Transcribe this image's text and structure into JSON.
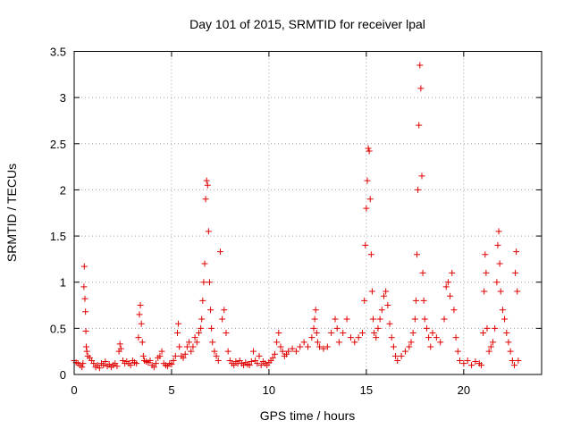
{
  "chart_data": {
    "type": "scatter",
    "title": "Day 101 of 2015, SRMTID for receiver lpal",
    "xlabel": "GPS time / hours",
    "ylabel": "SRMTID / TECUs",
    "xlim": [
      0,
      24
    ],
    "ylim": [
      0,
      3.5
    ],
    "xticks": [
      0,
      5,
      10,
      15,
      20
    ],
    "xtick_labels": [
      "0",
      "5",
      "10",
      "15",
      "20"
    ],
    "yticks": [
      0,
      0.5,
      1,
      1.5,
      2,
      2.5,
      3,
      3.5
    ],
    "ytick_labels": [
      "0",
      "0.5",
      "1",
      "1.5",
      "2",
      "2.5",
      "3",
      "3.5"
    ],
    "grid": true,
    "marker": "+",
    "color": "#e00000",
    "series": [
      {
        "name": "SRMTID",
        "points": [
          [
            0.0,
            0.15
          ],
          [
            0.1,
            0.13
          ],
          [
            0.2,
            0.12
          ],
          [
            0.3,
            0.1
          ],
          [
            0.4,
            0.08
          ],
          [
            0.45,
            0.12
          ],
          [
            0.5,
            0.95
          ],
          [
            0.52,
            1.17
          ],
          [
            0.55,
            0.82
          ],
          [
            0.58,
            0.68
          ],
          [
            0.6,
            0.47
          ],
          [
            0.62,
            0.3
          ],
          [
            0.65,
            0.25
          ],
          [
            0.7,
            0.2
          ],
          [
            0.8,
            0.18
          ],
          [
            0.9,
            0.15
          ],
          [
            1.0,
            0.12
          ],
          [
            1.1,
            0.08
          ],
          [
            1.2,
            0.1
          ],
          [
            1.3,
            0.07
          ],
          [
            1.4,
            0.12
          ],
          [
            1.5,
            0.1
          ],
          [
            1.6,
            0.14
          ],
          [
            1.7,
            0.09
          ],
          [
            1.8,
            0.11
          ],
          [
            1.9,
            0.08
          ],
          [
            2.0,
            0.1
          ],
          [
            2.1,
            0.12
          ],
          [
            2.2,
            0.09
          ],
          [
            2.3,
            0.25
          ],
          [
            2.35,
            0.33
          ],
          [
            2.4,
            0.28
          ],
          [
            2.5,
            0.15
          ],
          [
            2.6,
            0.12
          ],
          [
            2.7,
            0.14
          ],
          [
            2.8,
            0.12
          ],
          [
            2.9,
            0.1
          ],
          [
            3.0,
            0.15
          ],
          [
            3.1,
            0.13
          ],
          [
            3.2,
            0.12
          ],
          [
            3.3,
            0.4
          ],
          [
            3.35,
            0.65
          ],
          [
            3.4,
            0.75
          ],
          [
            3.45,
            0.55
          ],
          [
            3.5,
            0.35
          ],
          [
            3.55,
            0.2
          ],
          [
            3.6,
            0.15
          ],
          [
            3.7,
            0.14
          ],
          [
            3.8,
            0.13
          ],
          [
            3.9,
            0.15
          ],
          [
            4.0,
            0.1
          ],
          [
            4.1,
            0.08
          ],
          [
            4.2,
            0.12
          ],
          [
            4.3,
            0.18
          ],
          [
            4.4,
            0.2
          ],
          [
            4.5,
            0.25
          ],
          [
            4.6,
            0.12
          ],
          [
            4.7,
            0.1
          ],
          [
            4.8,
            0.09
          ],
          [
            4.9,
            0.12
          ],
          [
            5.0,
            0.11
          ],
          [
            5.1,
            0.15
          ],
          [
            5.2,
            0.2
          ],
          [
            5.3,
            0.45
          ],
          [
            5.35,
            0.55
          ],
          [
            5.4,
            0.3
          ],
          [
            5.5,
            0.2
          ],
          [
            5.6,
            0.18
          ],
          [
            5.7,
            0.22
          ],
          [
            5.8,
            0.3
          ],
          [
            5.9,
            0.35
          ],
          [
            6.0,
            0.25
          ],
          [
            6.1,
            0.3
          ],
          [
            6.2,
            0.4
          ],
          [
            6.3,
            0.35
          ],
          [
            6.4,
            0.45
          ],
          [
            6.5,
            0.5
          ],
          [
            6.55,
            0.6
          ],
          [
            6.6,
            0.8
          ],
          [
            6.65,
            1.0
          ],
          [
            6.7,
            1.2
          ],
          [
            6.75,
            1.9
          ],
          [
            6.8,
            2.1
          ],
          [
            6.85,
            2.05
          ],
          [
            6.9,
            1.55
          ],
          [
            6.95,
            1.0
          ],
          [
            7.0,
            0.7
          ],
          [
            7.05,
            0.5
          ],
          [
            7.1,
            0.35
          ],
          [
            7.2,
            0.25
          ],
          [
            7.3,
            0.2
          ],
          [
            7.4,
            0.15
          ],
          [
            7.5,
            1.33
          ],
          [
            7.6,
            0.6
          ],
          [
            7.7,
            0.7
          ],
          [
            7.8,
            0.45
          ],
          [
            7.9,
            0.25
          ],
          [
            8.0,
            0.15
          ],
          [
            8.1,
            0.12
          ],
          [
            8.2,
            0.1
          ],
          [
            8.3,
            0.14
          ],
          [
            8.4,
            0.12
          ],
          [
            8.5,
            0.15
          ],
          [
            8.6,
            0.12
          ],
          [
            8.7,
            0.1
          ],
          [
            8.8,
            0.13
          ],
          [
            8.9,
            0.11
          ],
          [
            9.0,
            0.1
          ],
          [
            9.1,
            0.14
          ],
          [
            9.2,
            0.25
          ],
          [
            9.3,
            0.15
          ],
          [
            9.4,
            0.12
          ],
          [
            9.5,
            0.2
          ],
          [
            9.6,
            0.1
          ],
          [
            9.7,
            0.14
          ],
          [
            9.8,
            0.12
          ],
          [
            9.9,
            0.1
          ],
          [
            10.0,
            0.13
          ],
          [
            10.1,
            0.15
          ],
          [
            10.2,
            0.18
          ],
          [
            10.3,
            0.22
          ],
          [
            10.4,
            0.35
          ],
          [
            10.5,
            0.45
          ],
          [
            10.6,
            0.3
          ],
          [
            10.7,
            0.25
          ],
          [
            10.8,
            0.2
          ],
          [
            10.9,
            0.22
          ],
          [
            11.0,
            0.25
          ],
          [
            11.2,
            0.28
          ],
          [
            11.4,
            0.25
          ],
          [
            11.6,
            0.3
          ],
          [
            11.8,
            0.35
          ],
          [
            12.0,
            0.3
          ],
          [
            12.2,
            0.4
          ],
          [
            12.3,
            0.5
          ],
          [
            12.35,
            0.6
          ],
          [
            12.4,
            0.7
          ],
          [
            12.45,
            0.45
          ],
          [
            12.5,
            0.35
          ],
          [
            12.6,
            0.3
          ],
          [
            12.8,
            0.28
          ],
          [
            13.0,
            0.3
          ],
          [
            13.2,
            0.45
          ],
          [
            13.4,
            0.6
          ],
          [
            13.5,
            0.5
          ],
          [
            13.6,
            0.35
          ],
          [
            13.8,
            0.45
          ],
          [
            14.0,
            0.6
          ],
          [
            14.2,
            0.4
          ],
          [
            14.4,
            0.35
          ],
          [
            14.6,
            0.4
          ],
          [
            14.8,
            0.45
          ],
          [
            14.9,
            0.8
          ],
          [
            14.95,
            1.4
          ],
          [
            15.0,
            1.8
          ],
          [
            15.05,
            2.1
          ],
          [
            15.1,
            2.45
          ],
          [
            15.15,
            2.42
          ],
          [
            15.2,
            1.9
          ],
          [
            15.25,
            1.3
          ],
          [
            15.3,
            0.9
          ],
          [
            15.35,
            0.6
          ],
          [
            15.4,
            0.45
          ],
          [
            15.5,
            0.4
          ],
          [
            15.6,
            0.5
          ],
          [
            15.7,
            0.6
          ],
          [
            15.8,
            0.7
          ],
          [
            15.9,
            0.85
          ],
          [
            16.0,
            0.9
          ],
          [
            16.1,
            0.75
          ],
          [
            16.2,
            0.55
          ],
          [
            16.3,
            0.4
          ],
          [
            16.4,
            0.3
          ],
          [
            16.5,
            0.2
          ],
          [
            16.6,
            0.15
          ],
          [
            16.8,
            0.2
          ],
          [
            17.0,
            0.25
          ],
          [
            17.2,
            0.3
          ],
          [
            17.3,
            0.35
          ],
          [
            17.4,
            0.45
          ],
          [
            17.5,
            0.6
          ],
          [
            17.55,
            0.8
          ],
          [
            17.6,
            1.3
          ],
          [
            17.65,
            2.0
          ],
          [
            17.7,
            2.7
          ],
          [
            17.75,
            3.35
          ],
          [
            17.8,
            3.1
          ],
          [
            17.85,
            2.15
          ],
          [
            17.9,
            1.1
          ],
          [
            17.95,
            0.8
          ],
          [
            18.0,
            0.6
          ],
          [
            18.1,
            0.5
          ],
          [
            18.2,
            0.4
          ],
          [
            18.3,
            0.3
          ],
          [
            18.4,
            0.45
          ],
          [
            18.6,
            0.4
          ],
          [
            18.8,
            0.35
          ],
          [
            19.0,
            0.6
          ],
          [
            19.1,
            0.95
          ],
          [
            19.2,
            1.0
          ],
          [
            19.3,
            0.85
          ],
          [
            19.4,
            1.1
          ],
          [
            19.5,
            0.7
          ],
          [
            19.6,
            0.4
          ],
          [
            19.7,
            0.25
          ],
          [
            19.8,
            0.15
          ],
          [
            20.0,
            0.12
          ],
          [
            20.2,
            0.15
          ],
          [
            20.4,
            0.1
          ],
          [
            20.6,
            0.14
          ],
          [
            20.8,
            0.12
          ],
          [
            20.9,
            0.1
          ],
          [
            21.0,
            0.45
          ],
          [
            21.05,
            0.9
          ],
          [
            21.1,
            1.3
          ],
          [
            21.15,
            1.1
          ],
          [
            21.2,
            0.5
          ],
          [
            21.3,
            0.25
          ],
          [
            21.4,
            0.3
          ],
          [
            21.5,
            0.35
          ],
          [
            21.6,
            0.5
          ],
          [
            21.7,
            1.0
          ],
          [
            21.75,
            1.4
          ],
          [
            21.8,
            1.55
          ],
          [
            21.85,
            1.2
          ],
          [
            21.9,
            0.9
          ],
          [
            22.0,
            0.7
          ],
          [
            22.1,
            0.6
          ],
          [
            22.2,
            0.45
          ],
          [
            22.3,
            0.35
          ],
          [
            22.4,
            0.25
          ],
          [
            22.5,
            0.15
          ],
          [
            22.6,
            0.1
          ],
          [
            22.65,
            1.1
          ],
          [
            22.7,
            1.33
          ],
          [
            22.75,
            0.9
          ],
          [
            22.8,
            0.15
          ]
        ]
      }
    ]
  }
}
